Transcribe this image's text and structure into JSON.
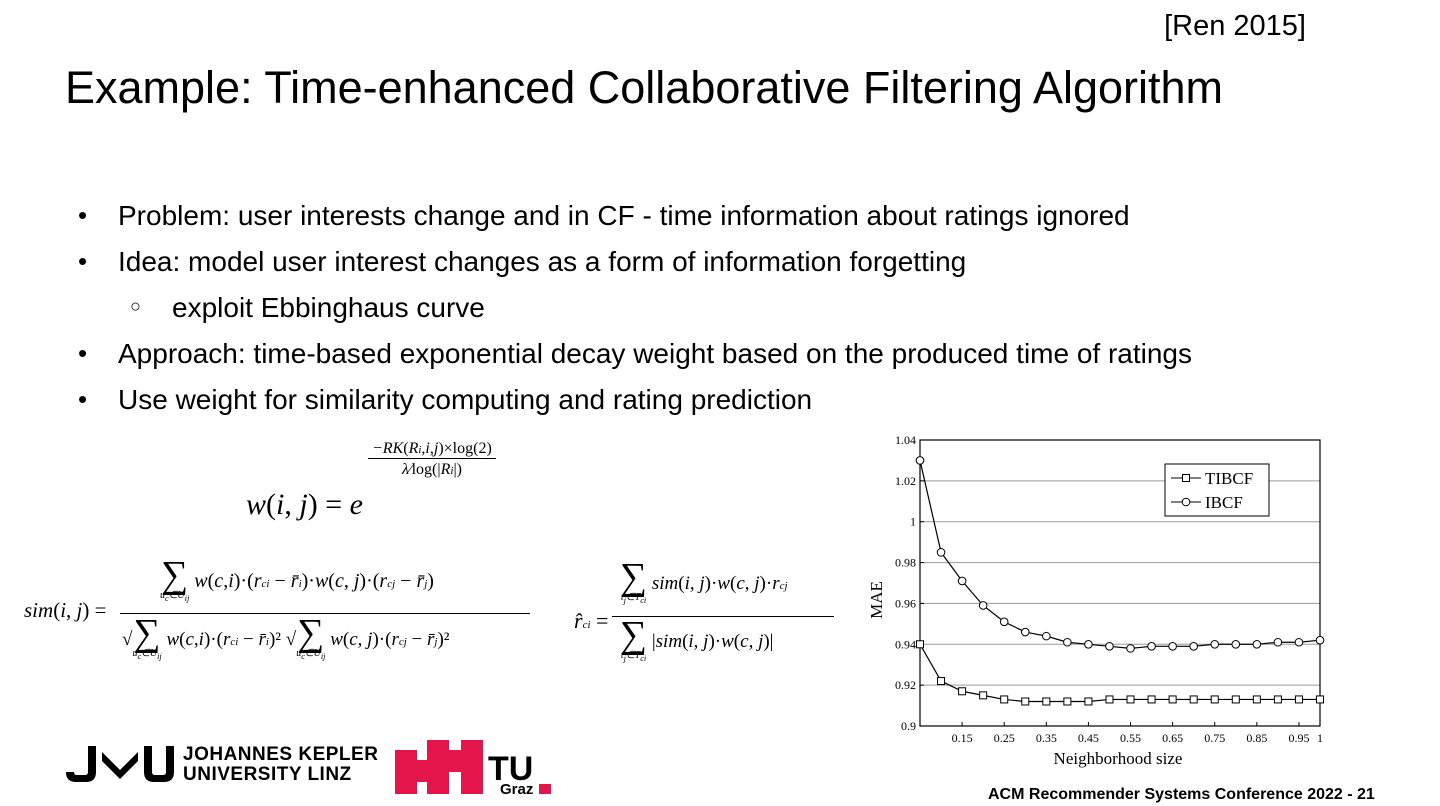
{
  "citation": "[Ren 2015]",
  "title": "Example: Time-enhanced Collaborative Filtering Algorithm",
  "bullets": [
    {
      "text": "Problem: user interests change and in CF - time information about ratings ignored",
      "level": 1
    },
    {
      "text": "Idea: model user interest changes as a form of information forgetting",
      "level": 1
    },
    {
      "text": "exploit Ebbinghaus curve",
      "level": 2
    },
    {
      "text": "Approach: time-based exponential decay weight based on the produced time of ratings",
      "level": 1
    },
    {
      "text": "Use weight for similarity computing and rating prediction",
      "level": 1
    }
  ],
  "logos": {
    "jku_line1": "JOHANNES KEPLER",
    "jku_line2": "UNIVERSITY LINZ",
    "tu": "TU",
    "graz": "Graz"
  },
  "footer": "ACM Recommender Systems Conference 2022  -  21",
  "colors": {
    "tu_red": "#e4154b"
  },
  "chart_data": {
    "type": "line",
    "xlabel": "Neighborhood size",
    "ylabel": "MAE",
    "xlim": [
      0.05,
      1.0
    ],
    "ylim": [
      0.9,
      1.04
    ],
    "xticks": [
      "0.15",
      "0.25",
      "0.35",
      "0.45",
      "0.55",
      "0.65",
      "0.75",
      "0.85",
      "0.95",
      "1"
    ],
    "xtick_values": [
      0.15,
      0.25,
      0.35,
      0.45,
      0.55,
      0.65,
      0.75,
      0.85,
      0.95,
      1.0
    ],
    "yticks": [
      "0.9",
      "0.92",
      "0.94",
      "0.96",
      "0.98",
      "1",
      "1.02",
      "1.04"
    ],
    "ytick_values": [
      0.9,
      0.92,
      0.94,
      0.96,
      0.98,
      1.0,
      1.02,
      1.04
    ],
    "grid": "horizontal",
    "legend": "top-right",
    "x": [
      0.05,
      0.1,
      0.15,
      0.2,
      0.25,
      0.3,
      0.35,
      0.4,
      0.45,
      0.5,
      0.55,
      0.6,
      0.65,
      0.7,
      0.75,
      0.8,
      0.85,
      0.9,
      0.95,
      1.0
    ],
    "series": [
      {
        "name": "TIBCF",
        "marker": "square",
        "values": [
          0.94,
          0.922,
          0.917,
          0.915,
          0.913,
          0.912,
          0.912,
          0.912,
          0.912,
          0.913,
          0.913,
          0.913,
          0.913,
          0.913,
          0.913,
          0.913,
          0.913,
          0.913,
          0.913,
          0.913
        ]
      },
      {
        "name": "IBCF",
        "marker": "circle",
        "values": [
          1.03,
          0.985,
          0.971,
          0.959,
          0.951,
          0.946,
          0.944,
          0.941,
          0.94,
          0.939,
          0.938,
          0.939,
          0.939,
          0.939,
          0.94,
          0.94,
          0.94,
          0.941,
          0.941,
          0.942
        ]
      }
    ]
  }
}
